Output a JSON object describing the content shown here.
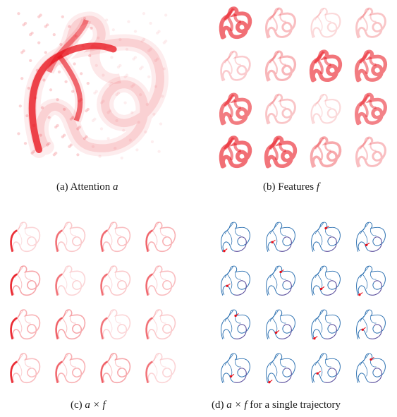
{
  "figure": {
    "panels": [
      {
        "id": "a",
        "caption_prefix": "(a) Attention ",
        "caption_math": "a",
        "caption_suffix": ""
      },
      {
        "id": "b",
        "caption_prefix": "(b) Features ",
        "caption_math": "f",
        "caption_suffix": ""
      },
      {
        "id": "c",
        "caption_prefix": "(c) ",
        "caption_math": "a × f",
        "caption_suffix": ""
      },
      {
        "id": "d",
        "caption_prefix": "(d) ",
        "caption_math": "a × f",
        "caption_suffix": " for a single trajectory"
      }
    ],
    "colors": {
      "heat": "#e8101a",
      "trajectory": "#2a6fb0",
      "trajectory_alt": "#6a4a9a",
      "marker": "#e8101a"
    },
    "grid": {
      "rows": 4,
      "cols": 4
    }
  }
}
